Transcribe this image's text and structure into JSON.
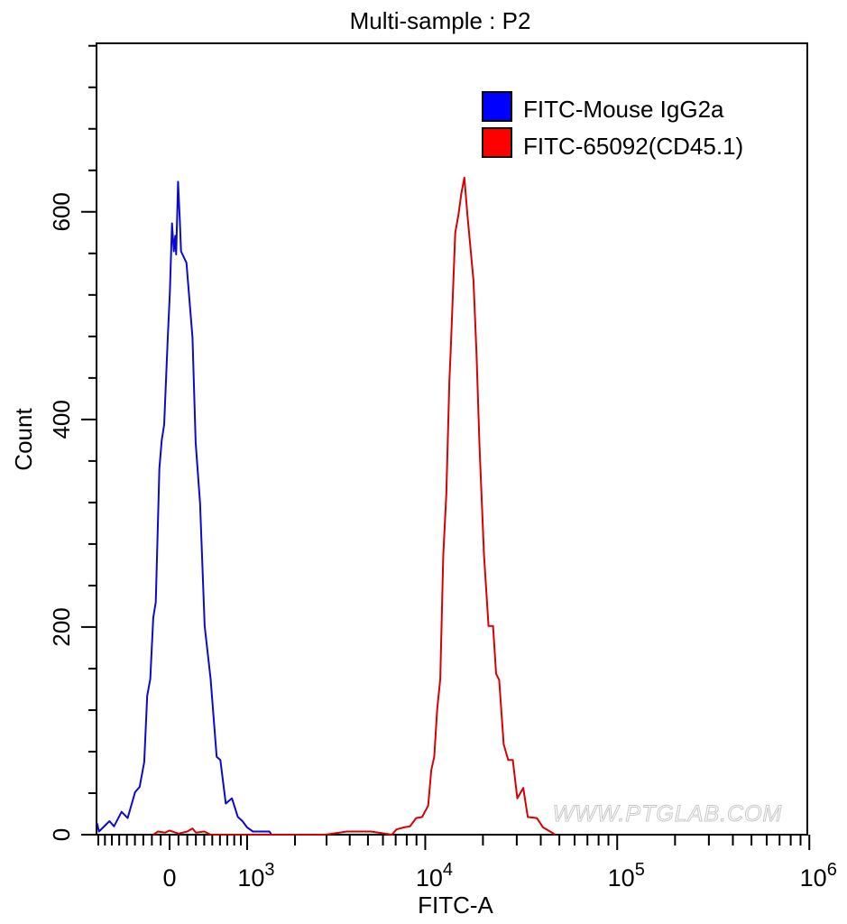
{
  "chart_data": {
    "type": "line",
    "title": "Multi-sample : P2",
    "xlabel": "FITC-A",
    "ylabel": "Count",
    "x_scale": "biexponential",
    "xlim": [
      -930,
      1000000
    ],
    "ylim": [
      0,
      765
    ],
    "x_ticks": [
      {
        "value": 0,
        "label": "0",
        "sup": ""
      },
      {
        "value": 1000,
        "label": "10",
        "sup": "3"
      },
      {
        "value": 10000,
        "label": "10",
        "sup": "4"
      },
      {
        "value": 100000,
        "label": "10",
        "sup": "5"
      },
      {
        "value": 1000000,
        "label": "10",
        "sup": "6"
      }
    ],
    "y_ticks": [
      {
        "value": 0,
        "label": "0"
      },
      {
        "value": 200,
        "label": "200"
      },
      {
        "value": 400,
        "label": "400"
      },
      {
        "value": 600,
        "label": "600"
      }
    ],
    "grid": false,
    "legend_position": "top-right",
    "watermark": "WWW.PTGLAB.COM",
    "series": [
      {
        "name": "FITC-Mouse IgG2a",
        "color": "#0a0ad0",
        "swatch_color": "#0000ff",
        "x": [
          -920,
          -891,
          -734,
          -670,
          -569,
          -491,
          -398,
          -343,
          -289,
          -254,
          -218,
          -184,
          -156,
          -115,
          -88,
          -61,
          -20,
          3,
          27,
          48,
          64,
          74,
          95,
          115,
          129,
          191,
          260,
          297,
          350,
          405,
          479,
          557,
          605,
          679,
          766,
          855,
          925,
          1000,
          1099,
          1408,
          1449
        ],
        "y": [
          11,
          3,
          13,
          8,
          22,
          16,
          41,
          46,
          70,
          134,
          150,
          209,
          224,
          353,
          380,
          395,
          479,
          522,
          589,
          562,
          577,
          559,
          629,
          593,
          562,
          551,
          479,
          378,
          319,
          201,
          150,
          75,
          72,
          30,
          35,
          17,
          13,
          7,
          3,
          3,
          0
        ]
      },
      {
        "name": "FITC-65092(CD45.1)",
        "color": "#d80000",
        "swatch_color": "#ff0000",
        "x": [
          -184,
          -130,
          -50,
          0,
          100,
          200,
          260,
          300,
          400,
          480,
          2958,
          3848,
          5176,
          6692,
          7067,
          7750,
          8321,
          8958,
          9631,
          10361,
          10754,
          11138,
          11550,
          11981,
          12421,
          12879,
          13366,
          13590,
          14349,
          14892,
          15435,
          16006,
          16605,
          17859,
          18523,
          19188,
          20264,
          21397,
          22586,
          23419,
          24289,
          25637,
          27078,
          28595,
          30186,
          32442,
          34248,
          38189,
          41081,
          45780,
          47455
        ],
        "y": [
          0,
          3,
          2,
          4,
          1,
          3,
          6,
          2,
          3,
          0,
          0,
          3,
          3,
          0,
          5,
          7,
          8,
          16,
          17,
          28,
          62,
          75,
          121,
          150,
          269,
          328,
          437,
          467,
          580,
          597,
          618,
          633,
          597,
          534,
          463,
          374,
          269,
          201,
          201,
          155,
          149,
          87,
          72,
          72,
          35,
          45,
          17,
          16,
          7,
          2,
          0
        ]
      }
    ]
  }
}
